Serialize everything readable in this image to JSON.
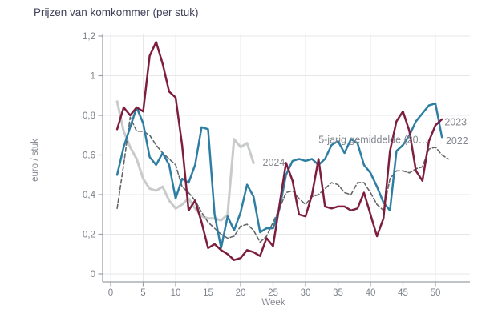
{
  "chart_data": {
    "type": "line",
    "title": "Prijzen van komkommer (per stuk)",
    "xlabel": "Week",
    "ylabel": "euro / stuk",
    "x_unit": "week",
    "xlim": [
      0,
      55
    ],
    "ylim": [
      0,
      1.2
    ],
    "grid": true,
    "decimal_separator": ",",
    "legend_position": "inline-right",
    "x_ticks": [
      0,
      5,
      10,
      15,
      20,
      25,
      30,
      35,
      40,
      45,
      50
    ],
    "x_grid": [
      0,
      5,
      10,
      15,
      20,
      25,
      30,
      35,
      40,
      45,
      50,
      55
    ],
    "y_ticks": [
      "0",
      "0,2",
      "0,4",
      "0,6",
      "0,8",
      "1",
      "1,2"
    ],
    "y_tick_values": [
      0,
      0.2,
      0.4,
      0.6,
      0.8,
      1.0,
      1.2
    ],
    "series": [
      {
        "name": "2024",
        "slug": "2024",
        "color": "#c9cacc",
        "style": "solid",
        "width": 3,
        "start_week": 1,
        "values": [
          0.87,
          0.72,
          0.64,
          0.58,
          0.48,
          0.43,
          0.42,
          0.44,
          0.37,
          0.33,
          0.35,
          0.38,
          0.33,
          0.29,
          0.28,
          0.28,
          0.27,
          0.3,
          0.68,
          0.64,
          0.66,
          0.56
        ]
      },
      {
        "name": "5-jarig gemiddelde (20…",
        "slug": "5-jarig-gemiddelde",
        "color": "#63666a",
        "style": "dashed",
        "width": 1.6,
        "start_week": 1,
        "values": [
          0.33,
          0.55,
          0.79,
          0.72,
          0.72,
          0.7,
          0.65,
          0.61,
          0.58,
          0.55,
          0.44,
          0.41,
          0.37,
          0.31,
          0.26,
          0.23,
          0.2,
          0.18,
          0.19,
          0.24,
          0.25,
          0.22,
          0.16,
          0.19,
          0.26,
          0.33,
          0.41,
          0.42,
          0.38,
          0.35,
          0.39,
          0.4,
          0.43,
          0.46,
          0.45,
          0.41,
          0.4,
          0.46,
          0.46,
          0.41,
          0.35,
          0.32,
          0.48,
          0.52,
          0.52,
          0.51,
          0.53,
          0.54,
          0.63,
          0.64,
          0.6,
          0.58
        ]
      },
      {
        "name": "2022",
        "slug": "2022",
        "color": "#2e7ea4",
        "style": "solid",
        "width": 2.5,
        "start_week": 1,
        "values": [
          0.5,
          0.64,
          0.74,
          0.84,
          0.76,
          0.59,
          0.55,
          0.61,
          0.55,
          0.38,
          0.48,
          0.46,
          0.55,
          0.74,
          0.73,
          0.3,
          0.13,
          0.29,
          0.22,
          0.31,
          0.45,
          0.39,
          0.21,
          0.23,
          0.23,
          0.33,
          0.5,
          0.57,
          0.58,
          0.57,
          0.58,
          0.55,
          0.58,
          0.65,
          0.67,
          0.61,
          0.68,
          0.66,
          0.55,
          0.51,
          0.44,
          0.36,
          0.32,
          0.62,
          0.65,
          0.7,
          0.77,
          0.81,
          0.85,
          0.86,
          0.69
        ]
      },
      {
        "name": "2023",
        "slug": "2023",
        "color": "#7e1e3e",
        "style": "solid",
        "width": 2.5,
        "start_week": 1,
        "values": [
          0.73,
          0.84,
          0.8,
          0.84,
          0.82,
          1.1,
          1.17,
          1.06,
          0.92,
          0.89,
          0.65,
          0.32,
          0.37,
          0.26,
          0.13,
          0.15,
          0.12,
          0.1,
          0.07,
          0.08,
          0.12,
          0.11,
          0.09,
          0.18,
          0.14,
          0.35,
          0.56,
          0.47,
          0.3,
          0.29,
          0.4,
          0.58,
          0.34,
          0.33,
          0.34,
          0.34,
          0.32,
          0.33,
          0.41,
          0.3,
          0.19,
          0.28,
          0.62,
          0.77,
          0.82,
          0.72,
          0.52,
          0.47,
          0.67,
          0.75,
          0.78
        ]
      }
    ],
    "annotations": [
      {
        "text": "2024",
        "slug": "2024",
        "week": 23.4,
        "value": 0.545,
        "anchor": "start"
      },
      {
        "text": "5-jarig gemiddelde (20…",
        "slug": "5-jarig-gemiddelde",
        "week": 32.0,
        "value": 0.66,
        "anchor": "start"
      },
      {
        "text": "2023",
        "slug": "2023",
        "week": 51.4,
        "value": 0.75,
        "anchor": "start"
      },
      {
        "text": "2022",
        "slug": "2022",
        "week": 51.6,
        "value": 0.655,
        "anchor": "start"
      }
    ]
  }
}
